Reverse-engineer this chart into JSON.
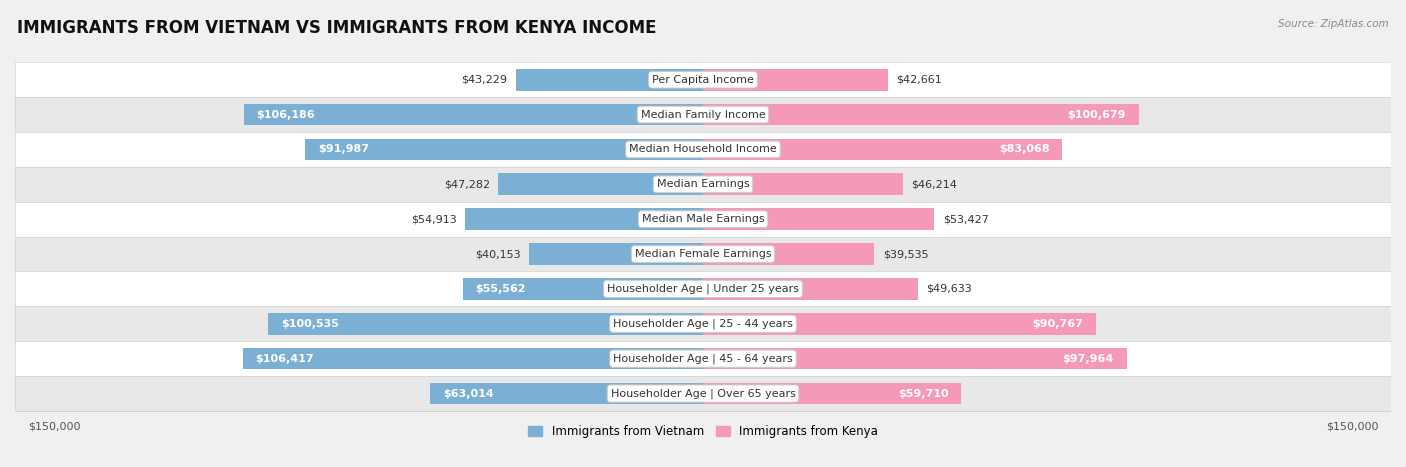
{
  "title": "IMMIGRANTS FROM VIETNAM VS IMMIGRANTS FROM KENYA INCOME",
  "source": "Source: ZipAtlas.com",
  "categories": [
    "Per Capita Income",
    "Median Family Income",
    "Median Household Income",
    "Median Earnings",
    "Median Male Earnings",
    "Median Female Earnings",
    "Householder Age | Under 25 years",
    "Householder Age | 25 - 44 years",
    "Householder Age | 45 - 64 years",
    "Householder Age | Over 65 years"
  ],
  "vietnam_values": [
    43229,
    106186,
    91987,
    47282,
    54913,
    40153,
    55562,
    100535,
    106417,
    63014
  ],
  "kenya_values": [
    42661,
    100679,
    83068,
    46214,
    53427,
    39535,
    49633,
    90767,
    97964,
    59710
  ],
  "vietnam_labels": [
    "$43,229",
    "$106,186",
    "$91,987",
    "$47,282",
    "$54,913",
    "$40,153",
    "$55,562",
    "$100,535",
    "$106,417",
    "$63,014"
  ],
  "kenya_labels": [
    "$42,661",
    "$100,679",
    "$83,068",
    "$46,214",
    "$53,427",
    "$39,535",
    "$49,633",
    "$90,767",
    "$97,964",
    "$59,710"
  ],
  "vietnam_color": "#7bafd4",
  "kenya_color": "#f499b7",
  "max_value": 150000,
  "background_color": "#f0f0f0",
  "row_light_color": "#ffffff",
  "row_dark_color": "#e8e8e8",
  "title_fontsize": 12,
  "label_fontsize": 8,
  "category_fontsize": 8,
  "legend_fontsize": 8.5,
  "source_fontsize": 7.5,
  "inside_label_threshold": 55000,
  "legend_label_vietnam": "Immigrants from Vietnam",
  "legend_label_kenya": "Immigrants from Kenya"
}
